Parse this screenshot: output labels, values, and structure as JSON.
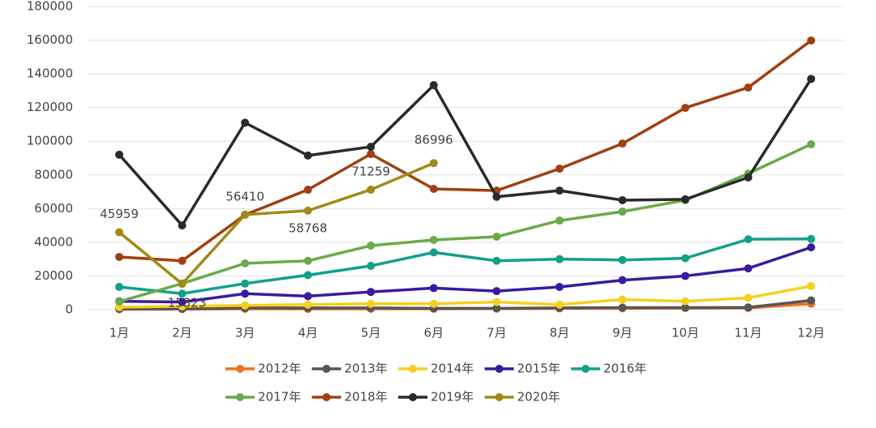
{
  "chart_data": {
    "type": "line",
    "categories": [
      "1月",
      "2月",
      "3月",
      "4月",
      "5月",
      "6月",
      "7月",
      "8月",
      "9月",
      "10月",
      "11月",
      "12月"
    ],
    "ylim": [
      0,
      180000
    ],
    "yticks": [
      0,
      20000,
      40000,
      60000,
      80000,
      100000,
      120000,
      140000,
      160000,
      180000
    ],
    "grid": true,
    "legend": "bottom",
    "series": [
      {
        "name": "2012年",
        "color": "#f07020",
        "values": [
          200,
          300,
          500,
          400,
          500,
          500,
          600,
          700,
          800,
          900,
          1000,
          3500
        ]
      },
      {
        "name": "2013年",
        "color": "#555555",
        "values": [
          500,
          500,
          1000,
          1000,
          1000,
          800,
          800,
          1000,
          1200,
          1200,
          1300,
          5500
        ]
      },
      {
        "name": "2014年",
        "color": "#f5d020",
        "values": [
          1500,
          2000,
          2500,
          3000,
          3500,
          3500,
          4500,
          3000,
          6000,
          5000,
          7000,
          14000
        ]
      },
      {
        "name": "2015年",
        "color": "#3a1aa0",
        "values": [
          5000,
          4500,
          9500,
          8000,
          10500,
          12800,
          11000,
          13500,
          17500,
          20000,
          24500,
          37000
        ]
      },
      {
        "name": "2016年",
        "color": "#12a08a",
        "values": [
          13500,
          9500,
          15500,
          20500,
          26000,
          34000,
          29000,
          30000,
          29500,
          30500,
          41800,
          42000
        ]
      },
      {
        "name": "2017年",
        "color": "#6aaa48",
        "values": [
          4800,
          15500,
          27500,
          29000,
          38000,
          41400,
          43300,
          52900,
          58200,
          65000,
          80800,
          98200
        ]
      },
      {
        "name": "2018年",
        "color": "#a04010",
        "values": [
          31300,
          29000,
          56300,
          71200,
          92400,
          71700,
          70700,
          83700,
          98600,
          119800,
          131900,
          159800
        ]
      },
      {
        "name": "2019年",
        "color": "#2a2a2a",
        "values": [
          92000,
          50000,
          111000,
          91500,
          96700,
          133300,
          67000,
          70700,
          65000,
          65500,
          78500,
          137000
        ]
      },
      {
        "name": "2020年",
        "color": "#a08a18",
        "labels": true,
        "values": [
          45959,
          15323,
          56410,
          58768,
          71259,
          86996,
          null,
          null,
          null,
          null,
          null,
          null
        ]
      }
    ]
  }
}
